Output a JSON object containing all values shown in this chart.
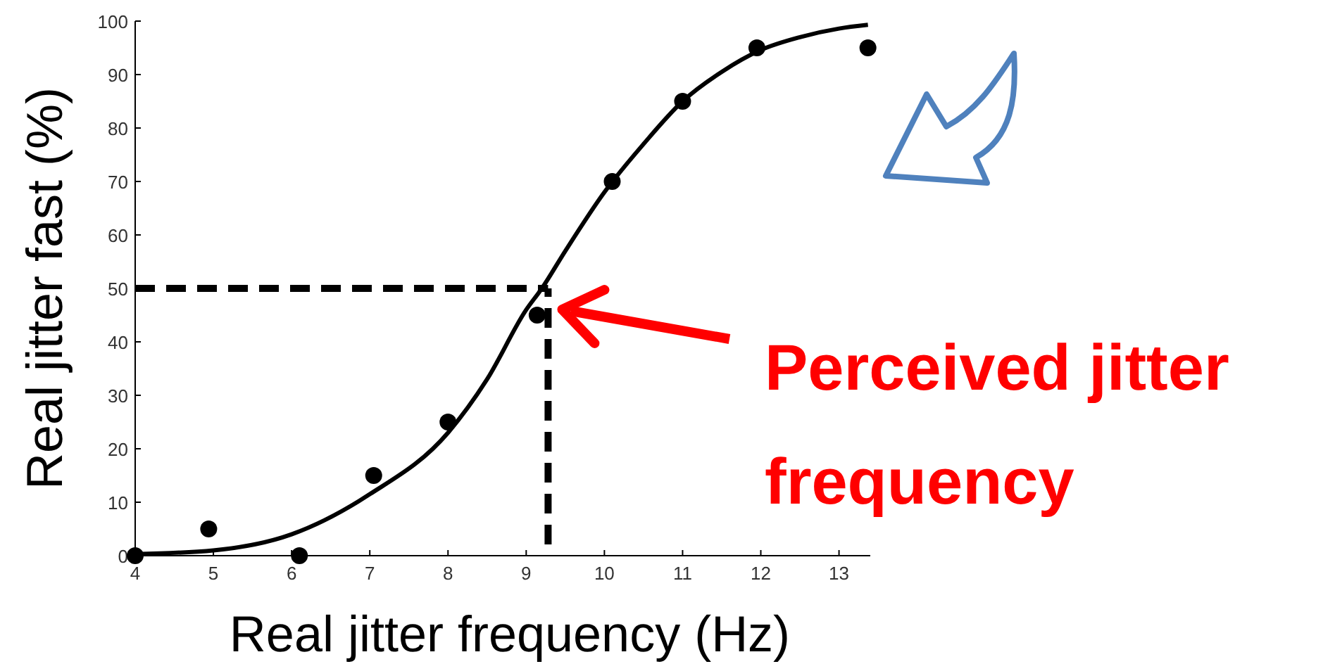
{
  "chart_data": {
    "type": "scatter",
    "xlabel": "Real jitter frequency (Hz)",
    "ylabel": "Real jitter fast (%)",
    "xlim": [
      4,
      13.4
    ],
    "ylim": [
      0,
      100
    ],
    "xticks": [
      4,
      5,
      6,
      7,
      8,
      9,
      10,
      11,
      12,
      13
    ],
    "yticks": [
      0,
      10,
      20,
      30,
      40,
      50,
      60,
      70,
      80,
      90,
      100
    ],
    "grid": false,
    "marker": "circle",
    "series": [
      {
        "color": "#000000",
        "x": [
          4,
          4.94,
          6.1,
          7.05,
          8,
          9.14,
          10.1,
          11,
          11.95,
          13.37
        ],
        "values": [
          0,
          5,
          0,
          15,
          25,
          45,
          70,
          85,
          95,
          95
        ]
      },
      {
        "type": "line",
        "color": "#000000",
        "line_style": "solid",
        "marker": "none",
        "x": [
          4,
          5,
          6,
          7,
          8,
          8.5,
          9,
          9.2,
          9.5,
          10,
          10.5,
          11,
          11.5,
          12,
          12.5,
          13,
          13.37
        ],
        "values": [
          0.3,
          1,
          4,
          11.5,
          23,
          33,
          46,
          50,
          57,
          68,
          77,
          85,
          90.5,
          94.6,
          97,
          98.6,
          99.3
        ]
      }
    ],
    "ref_lines": [
      {
        "axis": "y",
        "value": 50,
        "color": "#000000",
        "line_style": "dashed"
      },
      {
        "axis": "x",
        "value": 9.28,
        "color": "#000000",
        "line_style": "dashed"
      }
    ],
    "annotations": [
      "Perceived jitter frequency"
    ]
  }
}
